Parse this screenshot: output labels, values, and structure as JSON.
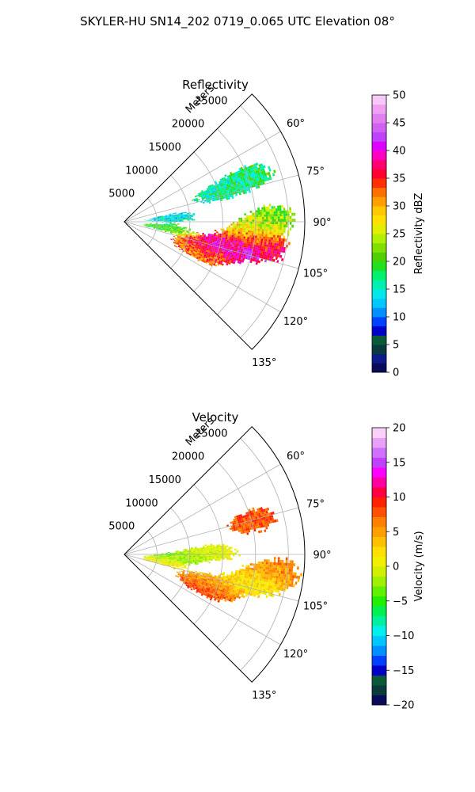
{
  "figure": {
    "suptitle": "SKYLER-HU  SN14_202  0719_0.065 UTC Elevation 08°"
  },
  "chart_data": [
    {
      "type": "heatmap",
      "projection": "polar-sector",
      "title": "Reflectivity",
      "radial_label": "Meters",
      "radial_ticks": [
        "5000",
        "10000",
        "15000",
        "20000",
        "25000"
      ],
      "radial_values": [
        5000,
        10000,
        15000,
        20000,
        25000
      ],
      "rmax": 27500,
      "azimuth_range_deg": [
        45,
        135
      ],
      "azimuth_ticks": [
        "60°",
        "75°",
        "90°",
        "105°",
        "120°",
        "135°"
      ],
      "azimuth_values": [
        60,
        75,
        90,
        105,
        120,
        135
      ],
      "grid": true,
      "colorbar": {
        "label": "Reflectivity dBZ",
        "range": [
          0,
          50
        ],
        "ticks": [
          "0",
          "5",
          "10",
          "15",
          "20",
          "25",
          "30",
          "35",
          "40",
          "45",
          "50"
        ],
        "tick_values": [
          0,
          5,
          10,
          15,
          20,
          25,
          30,
          35,
          40,
          45,
          50
        ],
        "colors": [
          "#0a0a5a",
          "#0d1a8a",
          "#0b3a3a",
          "#0a5a3a",
          "#0000c8",
          "#0040ff",
          "#0090ff",
          "#00c8ff",
          "#00e8e8",
          "#00f0b0",
          "#00f070",
          "#20e020",
          "#50d000",
          "#80e000",
          "#b0f000",
          "#e0f000",
          "#ffe000",
          "#ffc800",
          "#ffa000",
          "#ff7000",
          "#ff3000",
          "#ff0030",
          "#ff0070",
          "#ff00c0",
          "#e000ff",
          "#c040ff",
          "#d060f0",
          "#e080f0",
          "#f0a0f0",
          "#f8c8f8"
        ]
      },
      "echo_regions": [
        {
          "az": 103,
          "r": 16000,
          "value": 42
        },
        {
          "az": 100,
          "r": 21000,
          "value": 38
        },
        {
          "az": 107,
          "r": 13000,
          "value": 36
        },
        {
          "az": 95,
          "r": 19000,
          "value": 28
        },
        {
          "az": 88,
          "r": 22000,
          "value": 22
        },
        {
          "az": 85,
          "r": 7000,
          "value": 14
        },
        {
          "az": 98,
          "r": 6000,
          "value": 20
        },
        {
          "az": 112,
          "r": 12000,
          "value": 32
        },
        {
          "az": 70,
          "r": 20000,
          "value": 18
        },
        {
          "az": 72,
          "r": 15000,
          "value": 16
        }
      ]
    },
    {
      "type": "heatmap",
      "projection": "polar-sector",
      "title": "Velocity",
      "radial_label": "Meters",
      "radial_ticks": [
        "5000",
        "10000",
        "15000",
        "20000",
        "25000"
      ],
      "radial_values": [
        5000,
        10000,
        15000,
        20000,
        25000
      ],
      "rmax": 27500,
      "azimuth_range_deg": [
        45,
        135
      ],
      "azimuth_ticks": [
        "60°",
        "75°",
        "90°",
        "105°",
        "120°",
        "135°"
      ],
      "azimuth_values": [
        60,
        75,
        90,
        105,
        120,
        135
      ],
      "grid": true,
      "colorbar": {
        "label": "Velocity (m/s)",
        "range": [
          -20,
          20
        ],
        "ticks": [
          "−20",
          "−15",
          "−10",
          "−5",
          "0",
          "5",
          "10",
          "15",
          "20"
        ],
        "tick_values": [
          -20,
          -15,
          -10,
          -5,
          0,
          5,
          10,
          15,
          20
        ],
        "colors": [
          "#0a0a5a",
          "#0b3a3a",
          "#0a5a3a",
          "#0000c8",
          "#0040ff",
          "#0090ff",
          "#00c8ff",
          "#00f0f0",
          "#00f0a0",
          "#00f050",
          "#20f000",
          "#60f000",
          "#a0f000",
          "#d0f000",
          "#f0f000",
          "#ffe000",
          "#ffc000",
          "#ffa000",
          "#ff8000",
          "#ff5000",
          "#ff2000",
          "#ff0040",
          "#ff00a0",
          "#ff00ff",
          "#c040ff",
          "#d070ff",
          "#e8a0f8",
          "#f8d0f8"
        ]
      },
      "echo_regions": [
        {
          "az": 102,
          "r": 20000,
          "value": 1
        },
        {
          "az": 108,
          "r": 14000,
          "value": 4
        },
        {
          "az": 112,
          "r": 13000,
          "value": 9
        },
        {
          "az": 96,
          "r": 23000,
          "value": 6
        },
        {
          "az": 92,
          "r": 8000,
          "value": -3
        },
        {
          "az": 100,
          "r": 5000,
          "value": 1
        },
        {
          "az": 75,
          "r": 20000,
          "value": 8
        },
        {
          "az": 88,
          "r": 13000,
          "value": 0
        }
      ]
    }
  ]
}
